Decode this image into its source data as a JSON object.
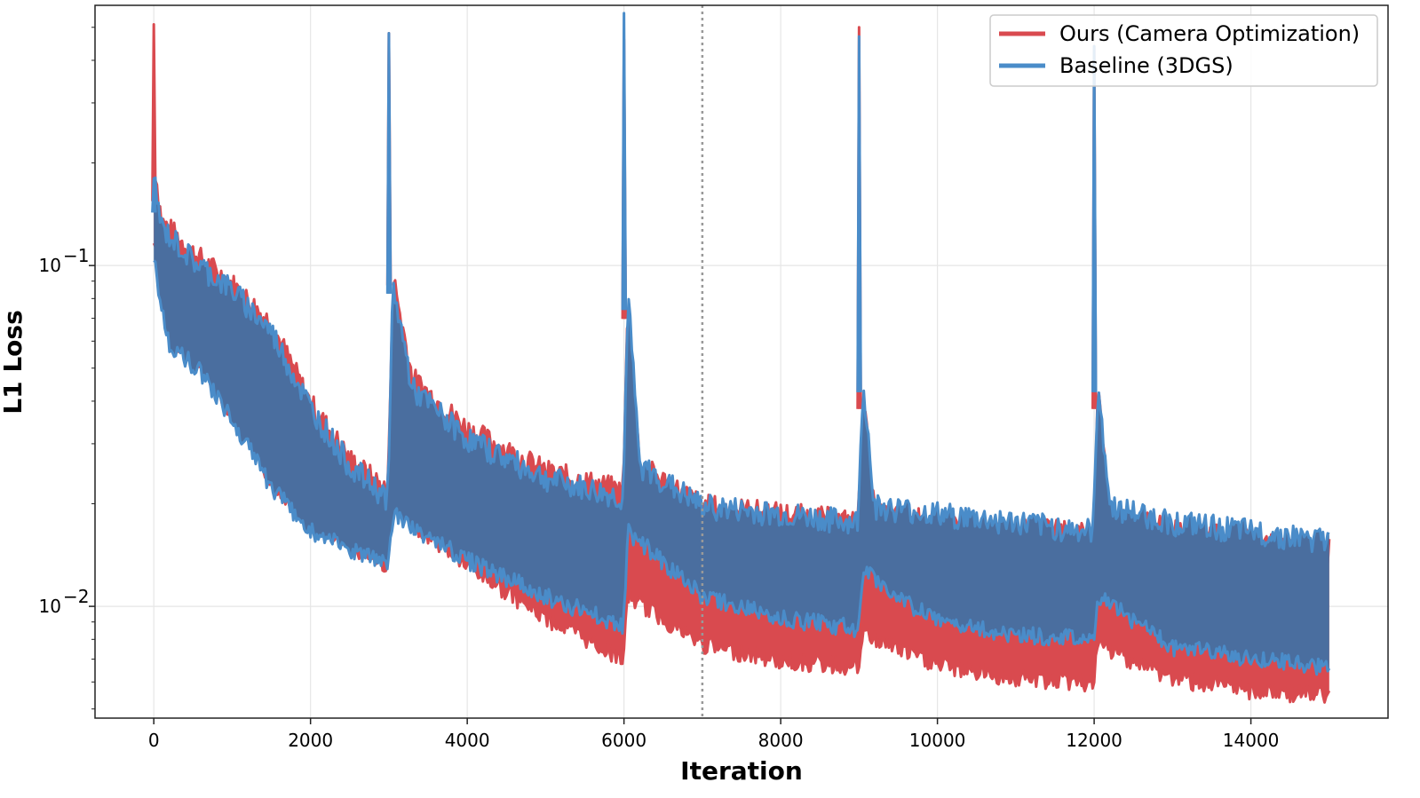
{
  "chart_data": {
    "type": "line",
    "xlabel": "Iteration",
    "ylabel": "L1 Loss",
    "yscale": "log",
    "xlim": [
      -750,
      15750
    ],
    "ylim": [
      0.0047,
      0.58
    ],
    "xticks": [
      0,
      2000,
      4000,
      6000,
      8000,
      10000,
      12000,
      14000
    ],
    "yticks": [
      {
        "value": 0.1,
        "base": "10",
        "exp": "−1"
      },
      {
        "value": 0.01,
        "base": "10",
        "exp": "−2"
      }
    ],
    "grid": true,
    "vline": {
      "x": 7000,
      "style": "dotted"
    },
    "legend": {
      "position": "top-right"
    },
    "series": [
      {
        "name": "Ours (Camera Optimization)",
        "color": "#d94a4f",
        "spikes": [
          [
            0,
            0.51
          ],
          [
            3000,
            0.48
          ],
          [
            6000,
            0.46
          ],
          [
            9000,
            0.5
          ],
          [
            12000,
            0.44
          ]
        ],
        "upper": [
          [
            0,
            0.2
          ],
          [
            100,
            0.13
          ],
          [
            500,
            0.105
          ],
          [
            1000,
            0.085
          ],
          [
            1500,
            0.065
          ],
          [
            2000,
            0.038
          ],
          [
            2500,
            0.026
          ],
          [
            2990,
            0.021
          ],
          [
            3050,
            0.09
          ],
          [
            3300,
            0.045
          ],
          [
            4000,
            0.032
          ],
          [
            5000,
            0.024
          ],
          [
            5990,
            0.021
          ],
          [
            6050,
            0.075
          ],
          [
            6200,
            0.025
          ],
          [
            7000,
            0.019
          ],
          [
            8000,
            0.018
          ],
          [
            8990,
            0.017
          ],
          [
            9050,
            0.04
          ],
          [
            9200,
            0.018
          ],
          [
            10000,
            0.017
          ],
          [
            11000,
            0.016
          ],
          [
            11990,
            0.016
          ],
          [
            12050,
            0.04
          ],
          [
            12200,
            0.018
          ],
          [
            13000,
            0.016
          ],
          [
            14000,
            0.015
          ],
          [
            15000,
            0.014
          ]
        ],
        "lower": [
          [
            0,
            0.12
          ],
          [
            200,
            0.065
          ],
          [
            600,
            0.052
          ],
          [
            1000,
            0.038
          ],
          [
            1500,
            0.024
          ],
          [
            2000,
            0.018
          ],
          [
            2500,
            0.0155
          ],
          [
            2990,
            0.0135
          ],
          [
            3050,
            0.02
          ],
          [
            4000,
            0.0135
          ],
          [
            5000,
            0.0095
          ],
          [
            5990,
            0.0072
          ],
          [
            6050,
            0.011
          ],
          [
            7000,
            0.0079
          ],
          [
            8000,
            0.0071
          ],
          [
            8990,
            0.0068
          ],
          [
            9050,
            0.0085
          ],
          [
            10000,
            0.0069
          ],
          [
            11000,
            0.0063
          ],
          [
            11990,
            0.0061
          ],
          [
            12050,
            0.0079
          ],
          [
            13000,
            0.0063
          ],
          [
            14000,
            0.0058
          ],
          [
            15000,
            0.0056
          ]
        ]
      },
      {
        "name": "Baseline (3DGS)",
        "color": "#4a8cc9",
        "fill": "#4a6e9f",
        "spikes": [
          [
            0,
            0.18
          ],
          [
            3000,
            0.48
          ],
          [
            6000,
            0.55
          ],
          [
            9000,
            0.47
          ],
          [
            12000,
            0.44
          ]
        ],
        "upper": [
          [
            0,
            0.175
          ],
          [
            100,
            0.125
          ],
          [
            500,
            0.1
          ],
          [
            1000,
            0.082
          ],
          [
            1500,
            0.062
          ],
          [
            2000,
            0.037
          ],
          [
            2500,
            0.025
          ],
          [
            2990,
            0.02
          ],
          [
            3050,
            0.085
          ],
          [
            3300,
            0.042
          ],
          [
            4000,
            0.03
          ],
          [
            5000,
            0.023
          ],
          [
            5990,
            0.02
          ],
          [
            6050,
            0.08
          ],
          [
            6200,
            0.025
          ],
          [
            7000,
            0.019
          ],
          [
            8000,
            0.018
          ],
          [
            8990,
            0.017
          ],
          [
            9050,
            0.045
          ],
          [
            9200,
            0.019
          ],
          [
            10000,
            0.018
          ],
          [
            11000,
            0.017
          ],
          [
            11990,
            0.016
          ],
          [
            12050,
            0.045
          ],
          [
            12200,
            0.019
          ],
          [
            13000,
            0.017
          ],
          [
            14000,
            0.016
          ],
          [
            15000,
            0.015
          ]
        ],
        "lower": [
          [
            0,
            0.105
          ],
          [
            200,
            0.06
          ],
          [
            600,
            0.05
          ],
          [
            1000,
            0.036
          ],
          [
            1500,
            0.023
          ],
          [
            2000,
            0.017
          ],
          [
            2500,
            0.015
          ],
          [
            2990,
            0.0135
          ],
          [
            3050,
            0.019
          ],
          [
            4000,
            0.014
          ],
          [
            5000,
            0.011
          ],
          [
            5990,
            0.009
          ],
          [
            6050,
            0.017
          ],
          [
            7000,
            0.011
          ],
          [
            8000,
            0.0095
          ],
          [
            8990,
            0.0088
          ],
          [
            9050,
            0.013
          ],
          [
            10000,
            0.0092
          ],
          [
            11000,
            0.0085
          ],
          [
            11990,
            0.0082
          ],
          [
            12050,
            0.011
          ],
          [
            13000,
            0.0078
          ],
          [
            14000,
            0.0072
          ],
          [
            15000,
            0.0068
          ]
        ]
      }
    ]
  }
}
